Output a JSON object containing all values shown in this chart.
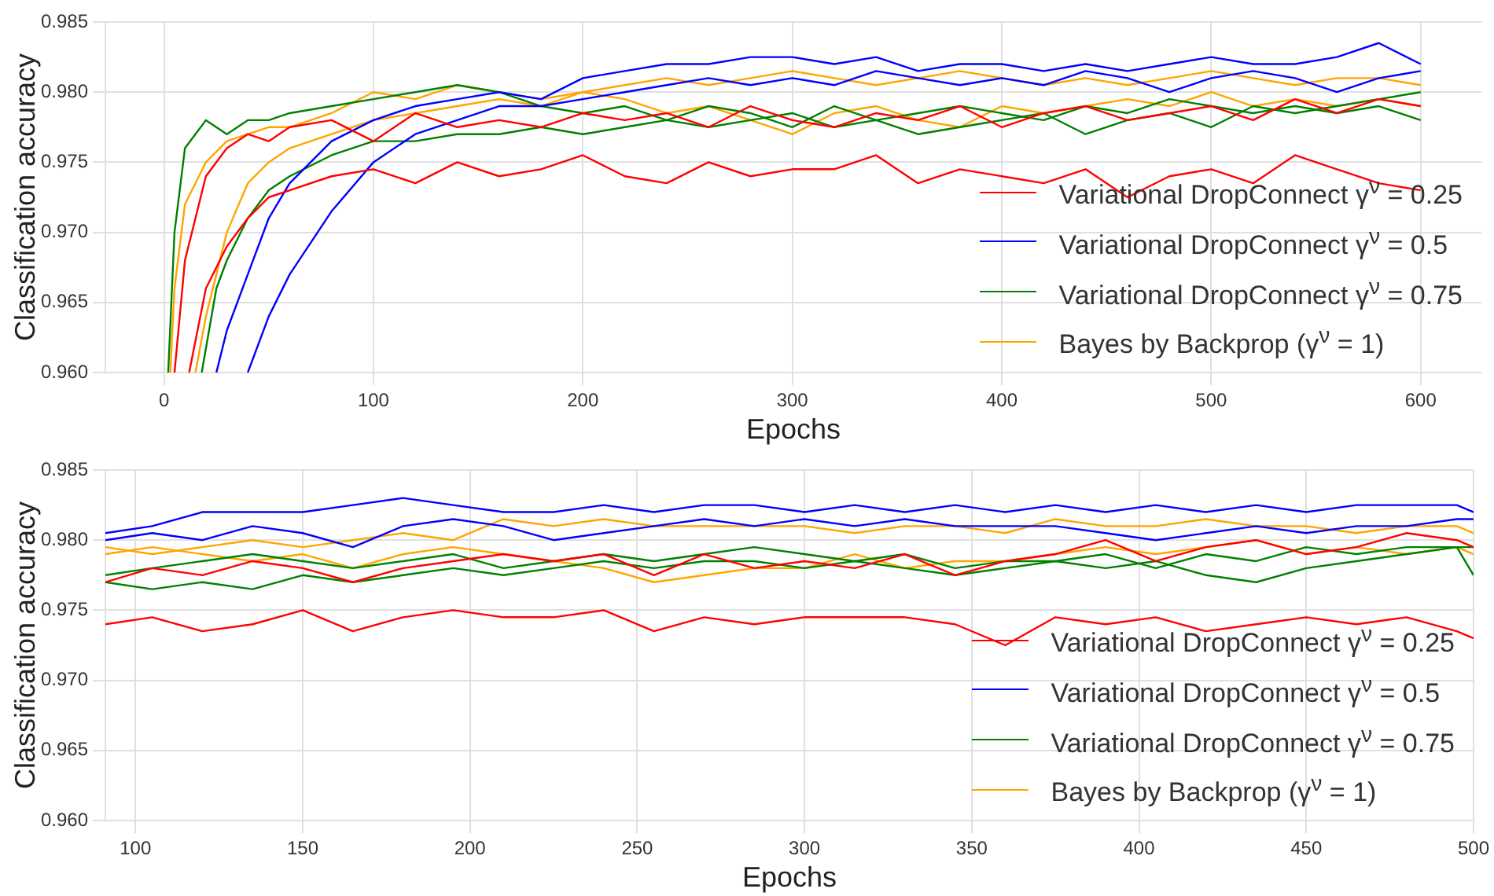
{
  "chart_data": [
    {
      "type": "line",
      "xlabel": "Epochs",
      "ylabel": "Classification accuracy",
      "xlim": [
        -28,
        629
      ],
      "ylim": [
        0.96,
        0.985
      ],
      "xticks": [
        0,
        100,
        200,
        300,
        400,
        500,
        600
      ],
      "yticks": [
        {
          "value": 0.96,
          "label": "0.960"
        },
        {
          "value": 0.965,
          "label": "0.965"
        },
        {
          "value": 0.97,
          "label": "0.970"
        },
        {
          "value": 0.975,
          "label": "0.975"
        },
        {
          "value": 0.98,
          "label": "0.980"
        },
        {
          "value": 0.985,
          "label": "0.985"
        }
      ],
      "grid": true,
      "legend": "bottom right",
      "series": [
        {
          "name": "Variational DropConnect γ$^{ν}$ = 0.25",
          "color": "#ff0000",
          "x": [
            5,
            10,
            20,
            30,
            40,
            50,
            60,
            80,
            100,
            120,
            140,
            160,
            180,
            200,
            220,
            240,
            260,
            280,
            300,
            320,
            340,
            360,
            380,
            400,
            420,
            440,
            460,
            480,
            500,
            520,
            540,
            560,
            580,
            600
          ],
          "values": [
            0.96,
            0.968,
            0.974,
            0.976,
            0.977,
            0.9765,
            0.9775,
            0.978,
            0.9765,
            0.9785,
            0.9775,
            0.978,
            0.9775,
            0.9785,
            0.978,
            0.9785,
            0.9775,
            0.979,
            0.978,
            0.9775,
            0.9785,
            0.978,
            0.979,
            0.9775,
            0.9785,
            0.979,
            0.978,
            0.9785,
            0.979,
            0.978,
            0.9795,
            0.9785,
            0.9795,
            0.979
          ]
        },
        {
          "color": "#ff0000",
          "x": [
            12,
            20,
            30,
            40,
            50,
            60,
            80,
            100,
            120,
            140,
            160,
            180,
            200,
            220,
            240,
            260,
            280,
            300,
            320,
            340,
            360,
            380,
            400,
            420,
            440,
            460,
            480,
            500,
            520,
            540,
            560,
            580,
            600
          ],
          "values": [
            0.96,
            0.966,
            0.969,
            0.971,
            0.9725,
            0.973,
            0.974,
            0.9745,
            0.9735,
            0.975,
            0.974,
            0.9745,
            0.9755,
            0.974,
            0.9735,
            0.975,
            0.974,
            0.9745,
            0.9745,
            0.9755,
            0.9735,
            0.9745,
            0.974,
            0.9735,
            0.9745,
            0.9725,
            0.974,
            0.9745,
            0.9735,
            0.9755,
            0.9745,
            0.9735,
            0.973
          ]
        },
        {
          "name": "Variational DropConnect γ$^{ν}$ = 0.5",
          "color": "#0000ff",
          "x": [
            25,
            30,
            40,
            50,
            60,
            80,
            100,
            120,
            140,
            160,
            180,
            200,
            220,
            240,
            260,
            280,
            300,
            320,
            340,
            360,
            380,
            400,
            420,
            440,
            460,
            480,
            500,
            520,
            540,
            560,
            580,
            600
          ],
          "values": [
            0.96,
            0.963,
            0.967,
            0.971,
            0.9735,
            0.9765,
            0.978,
            0.979,
            0.9795,
            0.98,
            0.9795,
            0.981,
            0.9815,
            0.982,
            0.982,
            0.9825,
            0.9825,
            0.982,
            0.9825,
            0.9815,
            0.982,
            0.982,
            0.9815,
            0.982,
            0.9815,
            0.982,
            0.9825,
            0.982,
            0.982,
            0.9825,
            0.9835,
            0.982
          ]
        },
        {
          "color": "#0000ff",
          "x": [
            40,
            50,
            60,
            80,
            100,
            120,
            140,
            160,
            180,
            200,
            220,
            240,
            260,
            280,
            300,
            320,
            340,
            360,
            380,
            400,
            420,
            440,
            460,
            480,
            500,
            520,
            540,
            560,
            580,
            600
          ],
          "values": [
            0.96,
            0.964,
            0.967,
            0.9715,
            0.975,
            0.977,
            0.978,
            0.979,
            0.979,
            0.9795,
            0.98,
            0.9805,
            0.981,
            0.9805,
            0.981,
            0.9805,
            0.9815,
            0.981,
            0.9805,
            0.981,
            0.9805,
            0.9815,
            0.981,
            0.98,
            0.981,
            0.9815,
            0.981,
            0.98,
            0.981,
            0.9815
          ]
        },
        {
          "name": "Variational DropConnect γ$^{ν}$ = 0.75",
          "color": "#008000",
          "x": [
            2,
            5,
            10,
            20,
            30,
            40,
            50,
            60,
            80,
            100,
            120,
            140,
            160,
            180,
            200,
            220,
            240,
            260,
            280,
            300,
            320,
            340,
            360,
            380,
            400,
            420,
            440,
            460,
            480,
            500,
            520,
            540,
            560,
            580,
            600
          ],
          "values": [
            0.96,
            0.97,
            0.976,
            0.978,
            0.977,
            0.978,
            0.978,
            0.9785,
            0.979,
            0.9795,
            0.98,
            0.9805,
            0.98,
            0.979,
            0.9785,
            0.979,
            0.978,
            0.979,
            0.9785,
            0.9775,
            0.979,
            0.978,
            0.9785,
            0.979,
            0.9785,
            0.978,
            0.979,
            0.9785,
            0.9795,
            0.979,
            0.9785,
            0.979,
            0.9785,
            0.979,
            0.978
          ]
        },
        {
          "color": "#008000",
          "x": [
            18,
            25,
            30,
            40,
            50,
            60,
            80,
            100,
            120,
            140,
            160,
            180,
            200,
            220,
            240,
            260,
            280,
            300,
            320,
            340,
            360,
            380,
            400,
            420,
            440,
            460,
            480,
            500,
            520,
            540,
            560,
            580,
            600
          ],
          "values": [
            0.96,
            0.966,
            0.968,
            0.971,
            0.973,
            0.974,
            0.9755,
            0.9765,
            0.9765,
            0.977,
            0.977,
            0.9775,
            0.977,
            0.9775,
            0.978,
            0.9775,
            0.978,
            0.9785,
            0.9775,
            0.978,
            0.977,
            0.9775,
            0.978,
            0.9785,
            0.977,
            0.978,
            0.9785,
            0.9775,
            0.979,
            0.9785,
            0.979,
            0.9795,
            0.98
          ]
        },
        {
          "name": "Bayes by Backprop (γ$^{ν}$ = 1)",
          "color": "#ffa500",
          "x": [
            3,
            5,
            10,
            20,
            30,
            40,
            50,
            60,
            80,
            100,
            120,
            140,
            160,
            180,
            200,
            220,
            240,
            260,
            280,
            300,
            320,
            340,
            360,
            380,
            400,
            420,
            440,
            460,
            480,
            500,
            520,
            540,
            560,
            580,
            600
          ],
          "values": [
            0.96,
            0.966,
            0.972,
            0.975,
            0.9765,
            0.977,
            0.9775,
            0.9775,
            0.9785,
            0.98,
            0.9795,
            0.9805,
            0.98,
            0.9795,
            0.98,
            0.9805,
            0.981,
            0.9805,
            0.981,
            0.9815,
            0.981,
            0.9805,
            0.981,
            0.9815,
            0.981,
            0.9805,
            0.981,
            0.9805,
            0.981,
            0.9815,
            0.981,
            0.9805,
            0.981,
            0.981,
            0.9805
          ]
        },
        {
          "color": "#ffa500",
          "x": [
            15,
            20,
            30,
            40,
            50,
            60,
            80,
            100,
            120,
            140,
            160,
            180,
            200,
            220,
            240,
            260,
            280,
            300,
            320,
            340,
            360,
            380,
            400,
            420,
            440,
            460,
            480,
            500,
            520,
            540,
            560,
            580,
            600
          ],
          "values": [
            0.96,
            0.964,
            0.97,
            0.9735,
            0.975,
            0.976,
            0.977,
            0.978,
            0.9785,
            0.979,
            0.9795,
            0.979,
            0.98,
            0.9795,
            0.9785,
            0.979,
            0.978,
            0.977,
            0.9785,
            0.979,
            0.978,
            0.9775,
            0.979,
            0.9785,
            0.979,
            0.9795,
            0.979,
            0.98,
            0.979,
            0.9795,
            0.979,
            0.9795,
            0.979
          ]
        }
      ]
    },
    {
      "type": "line",
      "xlabel": "Epochs",
      "ylabel": "Classification accuracy",
      "xlim": [
        91,
        500
      ],
      "ylim": [
        0.96,
        0.985
      ],
      "xticks": [
        100,
        150,
        200,
        250,
        300,
        350,
        400,
        450,
        500
      ],
      "yticks": [
        {
          "value": 0.96,
          "label": "0.960"
        },
        {
          "value": 0.965,
          "label": "0.965"
        },
        {
          "value": 0.97,
          "label": "0.970"
        },
        {
          "value": 0.975,
          "label": "0.975"
        },
        {
          "value": 0.98,
          "label": "0.980"
        },
        {
          "value": 0.985,
          "label": "0.985"
        }
      ],
      "grid": true,
      "legend": "bottom right",
      "x": [
        91,
        105,
        120,
        135,
        150,
        165,
        180,
        195,
        210,
        225,
        240,
        255,
        270,
        285,
        300,
        315,
        330,
        345,
        360,
        375,
        390,
        405,
        420,
        435,
        450,
        465,
        480,
        495,
        500
      ],
      "series": [
        {
          "name": "Variational DropConnect γ$^{ν}$ = 0.25",
          "color": "#ff0000",
          "values": [
            0.977,
            0.978,
            0.9775,
            0.9785,
            0.978,
            0.977,
            0.978,
            0.9785,
            0.979,
            0.9785,
            0.979,
            0.9775,
            0.979,
            0.978,
            0.9785,
            0.978,
            0.979,
            0.9775,
            0.9785,
            0.979,
            0.98,
            0.9785,
            0.9795,
            0.98,
            0.979,
            0.9795,
            0.9805,
            0.98,
            0.9795
          ]
        },
        {
          "color": "#ff0000",
          "values": [
            0.974,
            0.9745,
            0.9735,
            0.974,
            0.975,
            0.9735,
            0.9745,
            0.975,
            0.9745,
            0.9745,
            0.975,
            0.9735,
            0.9745,
            0.974,
            0.9745,
            0.9745,
            0.9745,
            0.974,
            0.9725,
            0.9745,
            0.974,
            0.9745,
            0.9735,
            0.974,
            0.9745,
            0.974,
            0.9745,
            0.9735,
            0.973
          ]
        },
        {
          "name": "Variational DropConnect γ$^{ν}$ = 0.5",
          "color": "#0000ff",
          "values": [
            0.9805,
            0.981,
            0.982,
            0.982,
            0.982,
            0.9825,
            0.983,
            0.9825,
            0.982,
            0.982,
            0.9825,
            0.982,
            0.9825,
            0.9825,
            0.982,
            0.9825,
            0.982,
            0.9825,
            0.982,
            0.9825,
            0.982,
            0.9825,
            0.982,
            0.9825,
            0.982,
            0.9825,
            0.9825,
            0.9825,
            0.982
          ]
        },
        {
          "color": "#0000ff",
          "values": [
            0.98,
            0.9805,
            0.98,
            0.981,
            0.9805,
            0.9795,
            0.981,
            0.9815,
            0.981,
            0.98,
            0.9805,
            0.981,
            0.9815,
            0.981,
            0.9815,
            0.981,
            0.9815,
            0.981,
            0.981,
            0.981,
            0.9805,
            0.98,
            0.9805,
            0.981,
            0.9805,
            0.981,
            0.981,
            0.9815,
            0.9815
          ]
        },
        {
          "name": "Variational DropConnect γ$^{ν}$ = 0.75",
          "color": "#008000",
          "values": [
            0.9775,
            0.978,
            0.9785,
            0.979,
            0.9785,
            0.978,
            0.9785,
            0.979,
            0.978,
            0.9785,
            0.979,
            0.9785,
            0.979,
            0.9795,
            0.979,
            0.9785,
            0.979,
            0.978,
            0.9785,
            0.9785,
            0.979,
            0.978,
            0.979,
            0.9785,
            0.9795,
            0.979,
            0.9795,
            0.9795,
            0.9775
          ]
        },
        {
          "color": "#008000",
          "values": [
            0.977,
            0.9765,
            0.977,
            0.9765,
            0.9775,
            0.977,
            0.9775,
            0.978,
            0.9775,
            0.978,
            0.9785,
            0.978,
            0.9785,
            0.9785,
            0.978,
            0.9785,
            0.978,
            0.9775,
            0.978,
            0.9785,
            0.978,
            0.9785,
            0.9775,
            0.977,
            0.978,
            0.9785,
            0.979,
            0.9795,
            0.9795
          ]
        },
        {
          "name": "Bayes by Backprop (γ$^{ν}$ = 1)",
          "color": "#ffa500",
          "values": [
            0.9795,
            0.979,
            0.9795,
            0.98,
            0.9795,
            0.98,
            0.9805,
            0.98,
            0.9815,
            0.981,
            0.9815,
            0.981,
            0.981,
            0.981,
            0.981,
            0.9805,
            0.981,
            0.981,
            0.9805,
            0.9815,
            0.981,
            0.981,
            0.9815,
            0.981,
            0.981,
            0.9805,
            0.981,
            0.981,
            0.9805
          ]
        },
        {
          "color": "#ffa500",
          "values": [
            0.979,
            0.9795,
            0.979,
            0.9785,
            0.979,
            0.978,
            0.979,
            0.9795,
            0.979,
            0.9785,
            0.978,
            0.977,
            0.9775,
            0.978,
            0.978,
            0.979,
            0.978,
            0.9785,
            0.9785,
            0.979,
            0.9795,
            0.979,
            0.9795,
            0.98,
            0.979,
            0.9795,
            0.979,
            0.9795,
            0.979
          ]
        }
      ]
    }
  ]
}
